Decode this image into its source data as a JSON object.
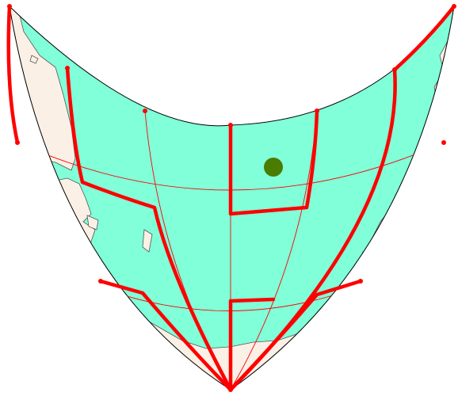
{
  "map": {
    "projection": "conic",
    "colors": {
      "ocean": "#80ffd9",
      "land": "#fbf0e5",
      "coastline": "#555555",
      "outline": "#000000",
      "graticule": "#ff0000",
      "highlight_stroke": "#ff0000",
      "marker": "#4a7c00"
    },
    "icons": {
      "marker": "filled-circle"
    }
  }
}
